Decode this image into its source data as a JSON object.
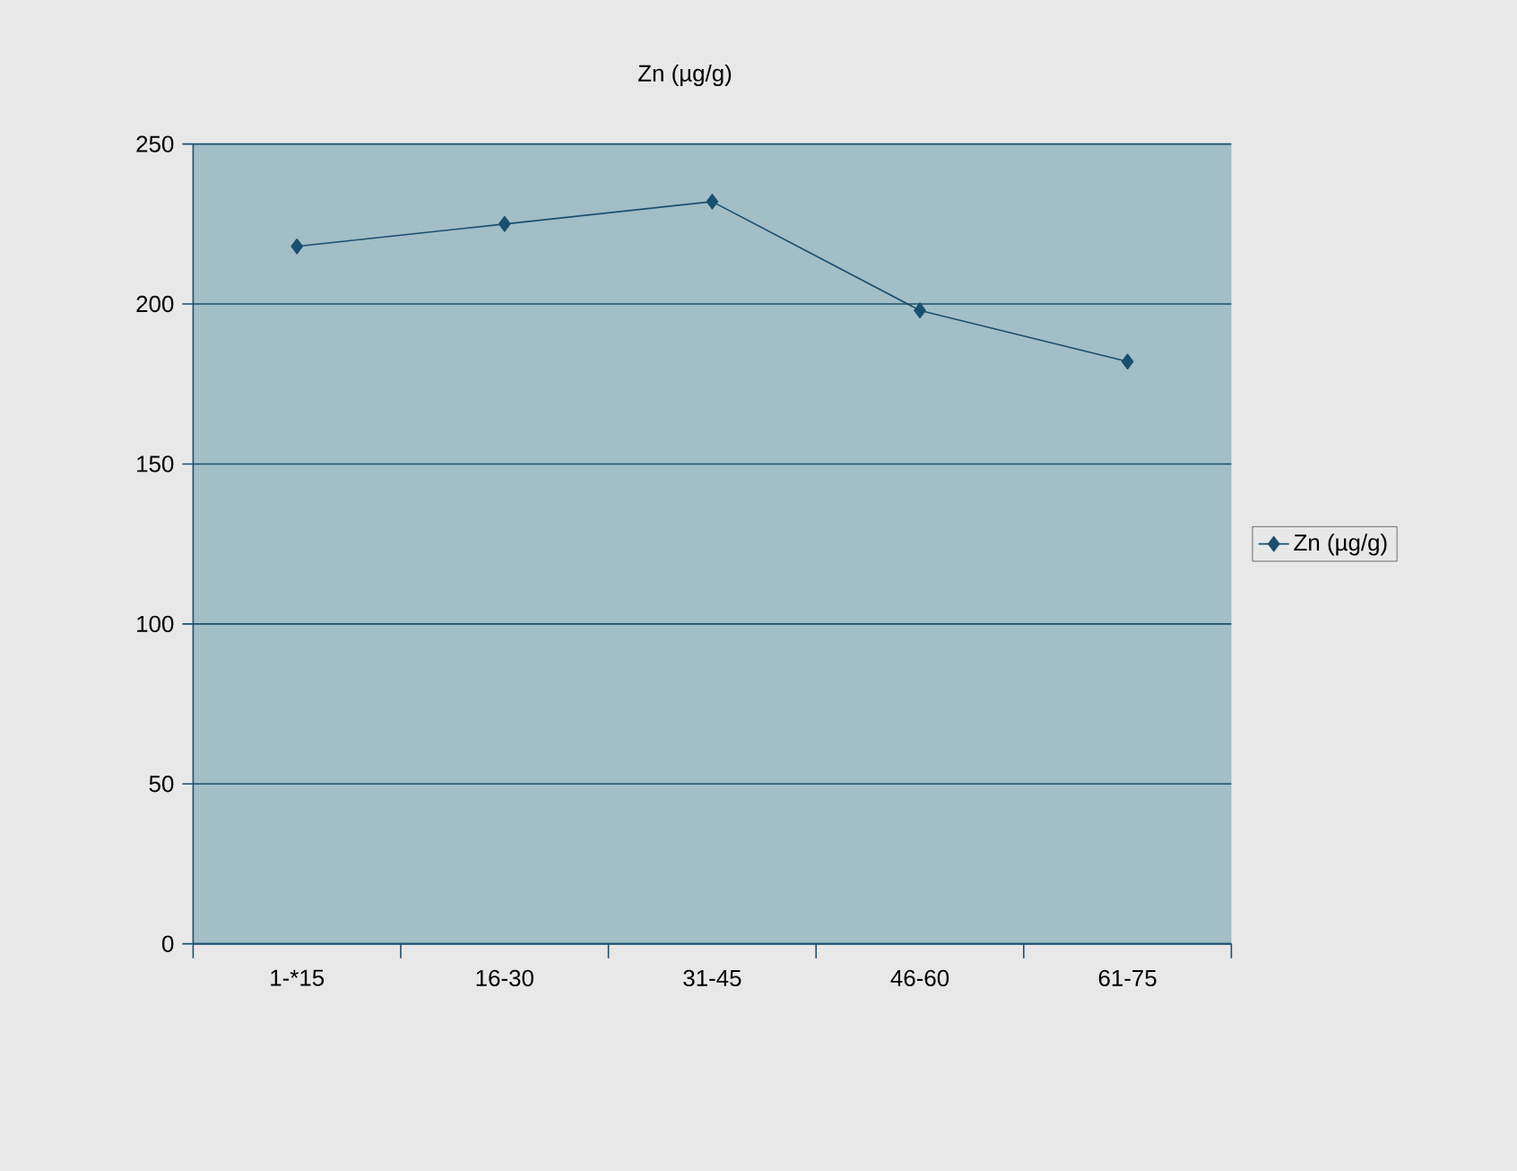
{
  "chart_data": {
    "type": "line",
    "title": "Zn (µg/g)",
    "categories": [
      "1-*15",
      "16-30",
      "31-45",
      "46-60",
      "61-75"
    ],
    "series": [
      {
        "name": "Zn (µg/g)",
        "color": "#1a4f6e",
        "values": [
          218,
          225,
          232,
          198,
          182
        ]
      }
    ],
    "ylim": [
      0,
      250
    ],
    "yticks": [
      0,
      50,
      100,
      150,
      200,
      250
    ],
    "grid": "y",
    "legend": "right",
    "marker": "diamond",
    "line_style": "solid"
  }
}
